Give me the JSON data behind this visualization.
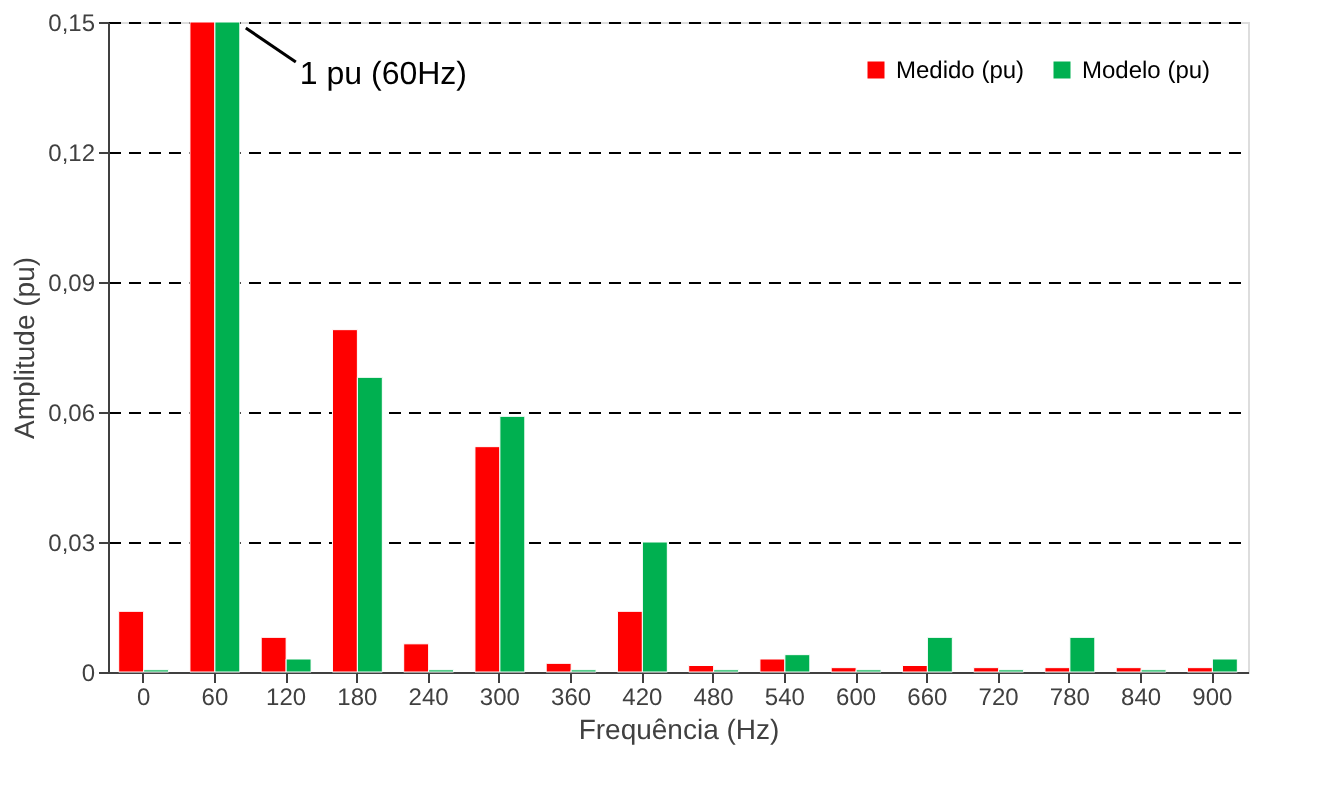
{
  "chart_data": {
    "type": "bar",
    "xlabel": "Frequência (Hz)",
    "ylabel": "Amplitude (pu)",
    "categories": [
      "0",
      "60",
      "120",
      "180",
      "240",
      "300",
      "360",
      "420",
      "480",
      "540",
      "600",
      "660",
      "720",
      "780",
      "840",
      "900"
    ],
    "series": [
      {
        "name": "Medido (pu)",
        "color": "#ff0000",
        "values": [
          0.014,
          0.15,
          0.008,
          0.079,
          0.0065,
          0.052,
          0.002,
          0.014,
          0.0015,
          0.003,
          0.001,
          0.0015,
          0.001,
          0.001,
          0.001,
          0.001
        ]
      },
      {
        "name": "Modelo (pu)",
        "color": "#00b050",
        "values": [
          0.0005,
          0.15,
          0.003,
          0.068,
          0.0005,
          0.059,
          0.0005,
          0.03,
          0.0005,
          0.004,
          0.0005,
          0.008,
          0.0005,
          0.008,
          0.0005,
          0.003
        ]
      }
    ],
    "ylim": [
      0,
      0.15
    ],
    "yticks": [
      {
        "value": 0,
        "label": "0"
      },
      {
        "value": 0.03,
        "label": "0,03"
      },
      {
        "value": 0.06,
        "label": "0,06"
      },
      {
        "value": 0.09,
        "label": "0,09"
      },
      {
        "value": 0.12,
        "label": "0,12"
      },
      {
        "value": 0.15,
        "label": "0,15"
      }
    ],
    "grid": "y",
    "legend": "top right",
    "annotations": [
      {
        "text": "1 pu (60Hz)",
        "x": "60",
        "y": 0.15
      }
    ]
  }
}
